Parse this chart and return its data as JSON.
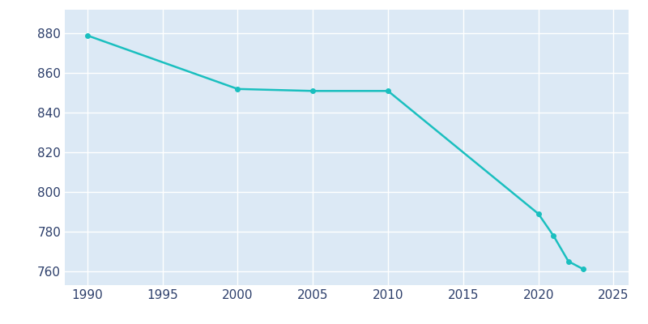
{
  "years": [
    1990,
    2000,
    2005,
    2010,
    2020,
    2021,
    2022,
    2023
  ],
  "population": [
    879,
    852,
    851,
    851,
    789,
    778,
    765,
    761
  ],
  "line_color": "#1abfbf",
  "marker_color": "#1abfbf",
  "figure_bg_color": "#ffffff",
  "plot_bg_color": "#dce9f5",
  "xlim": [
    1988.5,
    2026
  ],
  "ylim": [
    753,
    892
  ],
  "xticks": [
    1990,
    1995,
    2000,
    2005,
    2010,
    2015,
    2020,
    2025
  ],
  "yticks": [
    760,
    780,
    800,
    820,
    840,
    860,
    880
  ],
  "grid_color": "#ffffff",
  "tick_label_color": "#2d3f6b",
  "tick_fontsize": 11,
  "line_width": 1.8,
  "marker_size": 4
}
